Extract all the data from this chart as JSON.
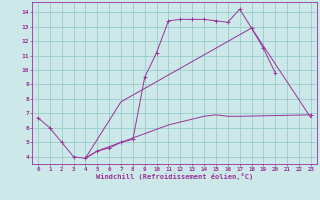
{
  "xlabel": "Windchill (Refroidissement éolien,°C)",
  "background_color": "#cce8e8",
  "line_color": "#993399",
  "grid_color": "#99cccc",
  "xlim": [
    -0.5,
    23.5
  ],
  "ylim": [
    3.5,
    14.7
  ],
  "xticks": [
    0,
    1,
    2,
    3,
    4,
    5,
    6,
    7,
    8,
    9,
    10,
    11,
    12,
    13,
    14,
    15,
    16,
    17,
    18,
    19,
    20,
    21,
    22,
    23
  ],
  "yticks": [
    4,
    5,
    6,
    7,
    8,
    9,
    10,
    11,
    12,
    13,
    14
  ],
  "line1_x": [
    0,
    1,
    2,
    3,
    4,
    5,
    6,
    7,
    8,
    9,
    10,
    11,
    12,
    13,
    14,
    15,
    16,
    17,
    18,
    19,
    20
  ],
  "line1_y": [
    6.7,
    6.0,
    5.0,
    4.0,
    3.9,
    4.4,
    4.6,
    5.0,
    5.2,
    9.5,
    11.2,
    13.4,
    13.5,
    13.5,
    13.5,
    13.4,
    13.3,
    14.2,
    12.9,
    11.5,
    9.8
  ],
  "line1b_x": [
    23
  ],
  "line1b_y": [
    6.9
  ],
  "line2_x": [
    4,
    7,
    18,
    23
  ],
  "line2_y": [
    3.9,
    7.8,
    12.9,
    6.7
  ],
  "line3_x": [
    4,
    5,
    6,
    7,
    8,
    9,
    10,
    11,
    12,
    13,
    14,
    15,
    16,
    17,
    23
  ],
  "line3_y": [
    3.9,
    4.4,
    4.7,
    5.0,
    5.3,
    5.6,
    5.9,
    6.2,
    6.4,
    6.6,
    6.8,
    6.9,
    6.8,
    6.8,
    6.9
  ]
}
